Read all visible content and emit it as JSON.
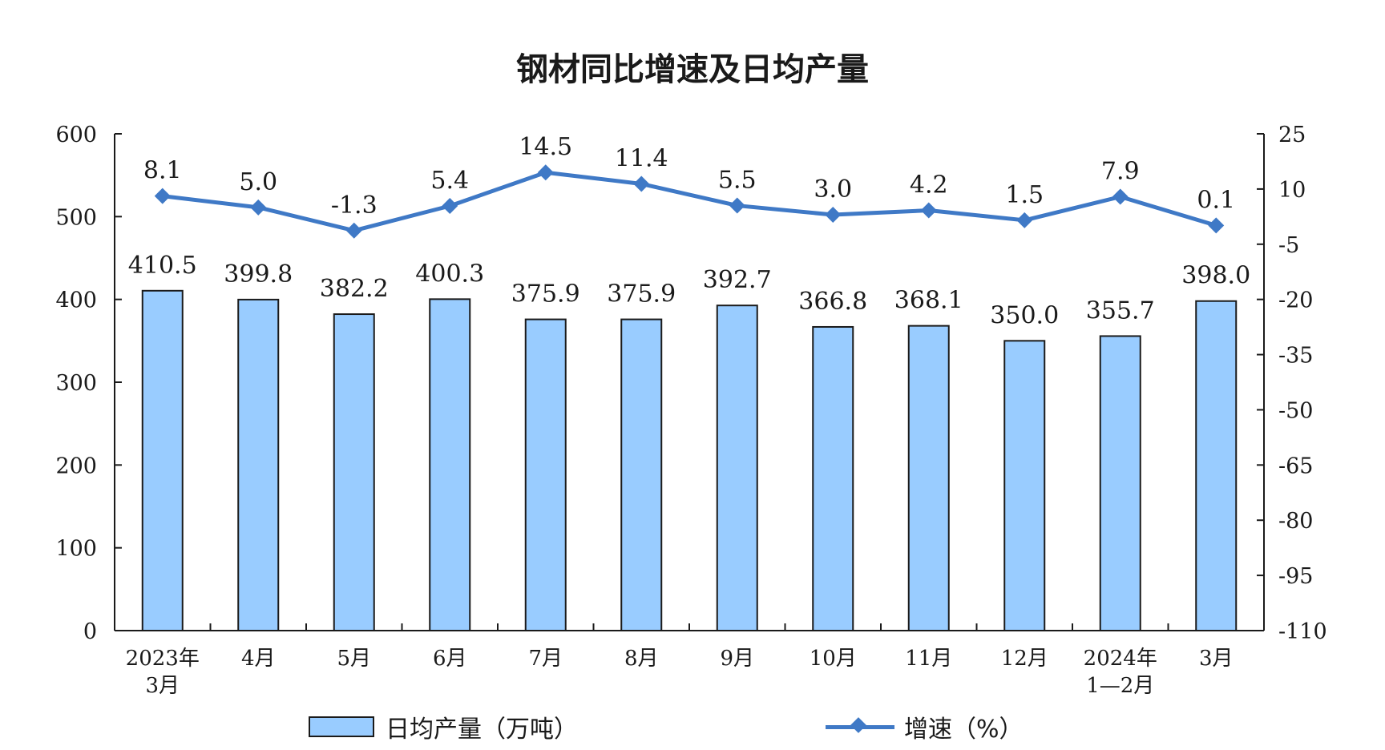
{
  "chart_data": {
    "type": "bar",
    "title": "钢材同比增速及日均产量",
    "categories": [
      [
        "2023年",
        "3月"
      ],
      [
        "4月"
      ],
      [
        "5月"
      ],
      [
        "6月"
      ],
      [
        "7月"
      ],
      [
        "8月"
      ],
      [
        "9月"
      ],
      [
        "10月"
      ],
      [
        "11月"
      ],
      [
        "12月"
      ],
      [
        "2024年",
        "1—2月"
      ],
      [
        "3月"
      ]
    ],
    "series": [
      {
        "name": "日均产量（万吨）",
        "type": "bar",
        "axis": "left",
        "color": "#99ccff",
        "values": [
          410.5,
          399.8,
          382.2,
          400.3,
          375.9,
          375.9,
          392.7,
          366.8,
          368.1,
          350.0,
          355.7,
          398.0
        ],
        "labels": [
          "410.5",
          "399.8",
          "382.2",
          "400.3",
          "375.9",
          "375.9",
          "392.7",
          "366.8",
          "368.1",
          "350.0",
          "355.7",
          "398.0"
        ]
      },
      {
        "name": "增速（%）",
        "type": "line",
        "axis": "right",
        "color": "#3f79c6",
        "values": [
          8.1,
          5.0,
          -1.3,
          5.4,
          14.5,
          11.4,
          5.5,
          3.0,
          4.2,
          1.5,
          7.9,
          0.1
        ],
        "labels": [
          "8.1",
          "5.0",
          "-1.3",
          "5.4",
          "14.5",
          "11.4",
          "5.5",
          "3.0",
          "4.2",
          "1.5",
          "7.9",
          "0.1"
        ]
      }
    ],
    "y_left": {
      "ylim": [
        0,
        600
      ],
      "ticks": [
        "0",
        "100",
        "200",
        "300",
        "400",
        "500",
        "600"
      ]
    },
    "y_right": {
      "ylim": [
        -110,
        25
      ],
      "ticks": [
        "-110",
        "-95",
        "-80",
        "-65",
        "-50",
        "-35",
        "-20",
        "-5",
        "10",
        "25"
      ]
    },
    "grid": false,
    "legend_position": "bottom"
  }
}
